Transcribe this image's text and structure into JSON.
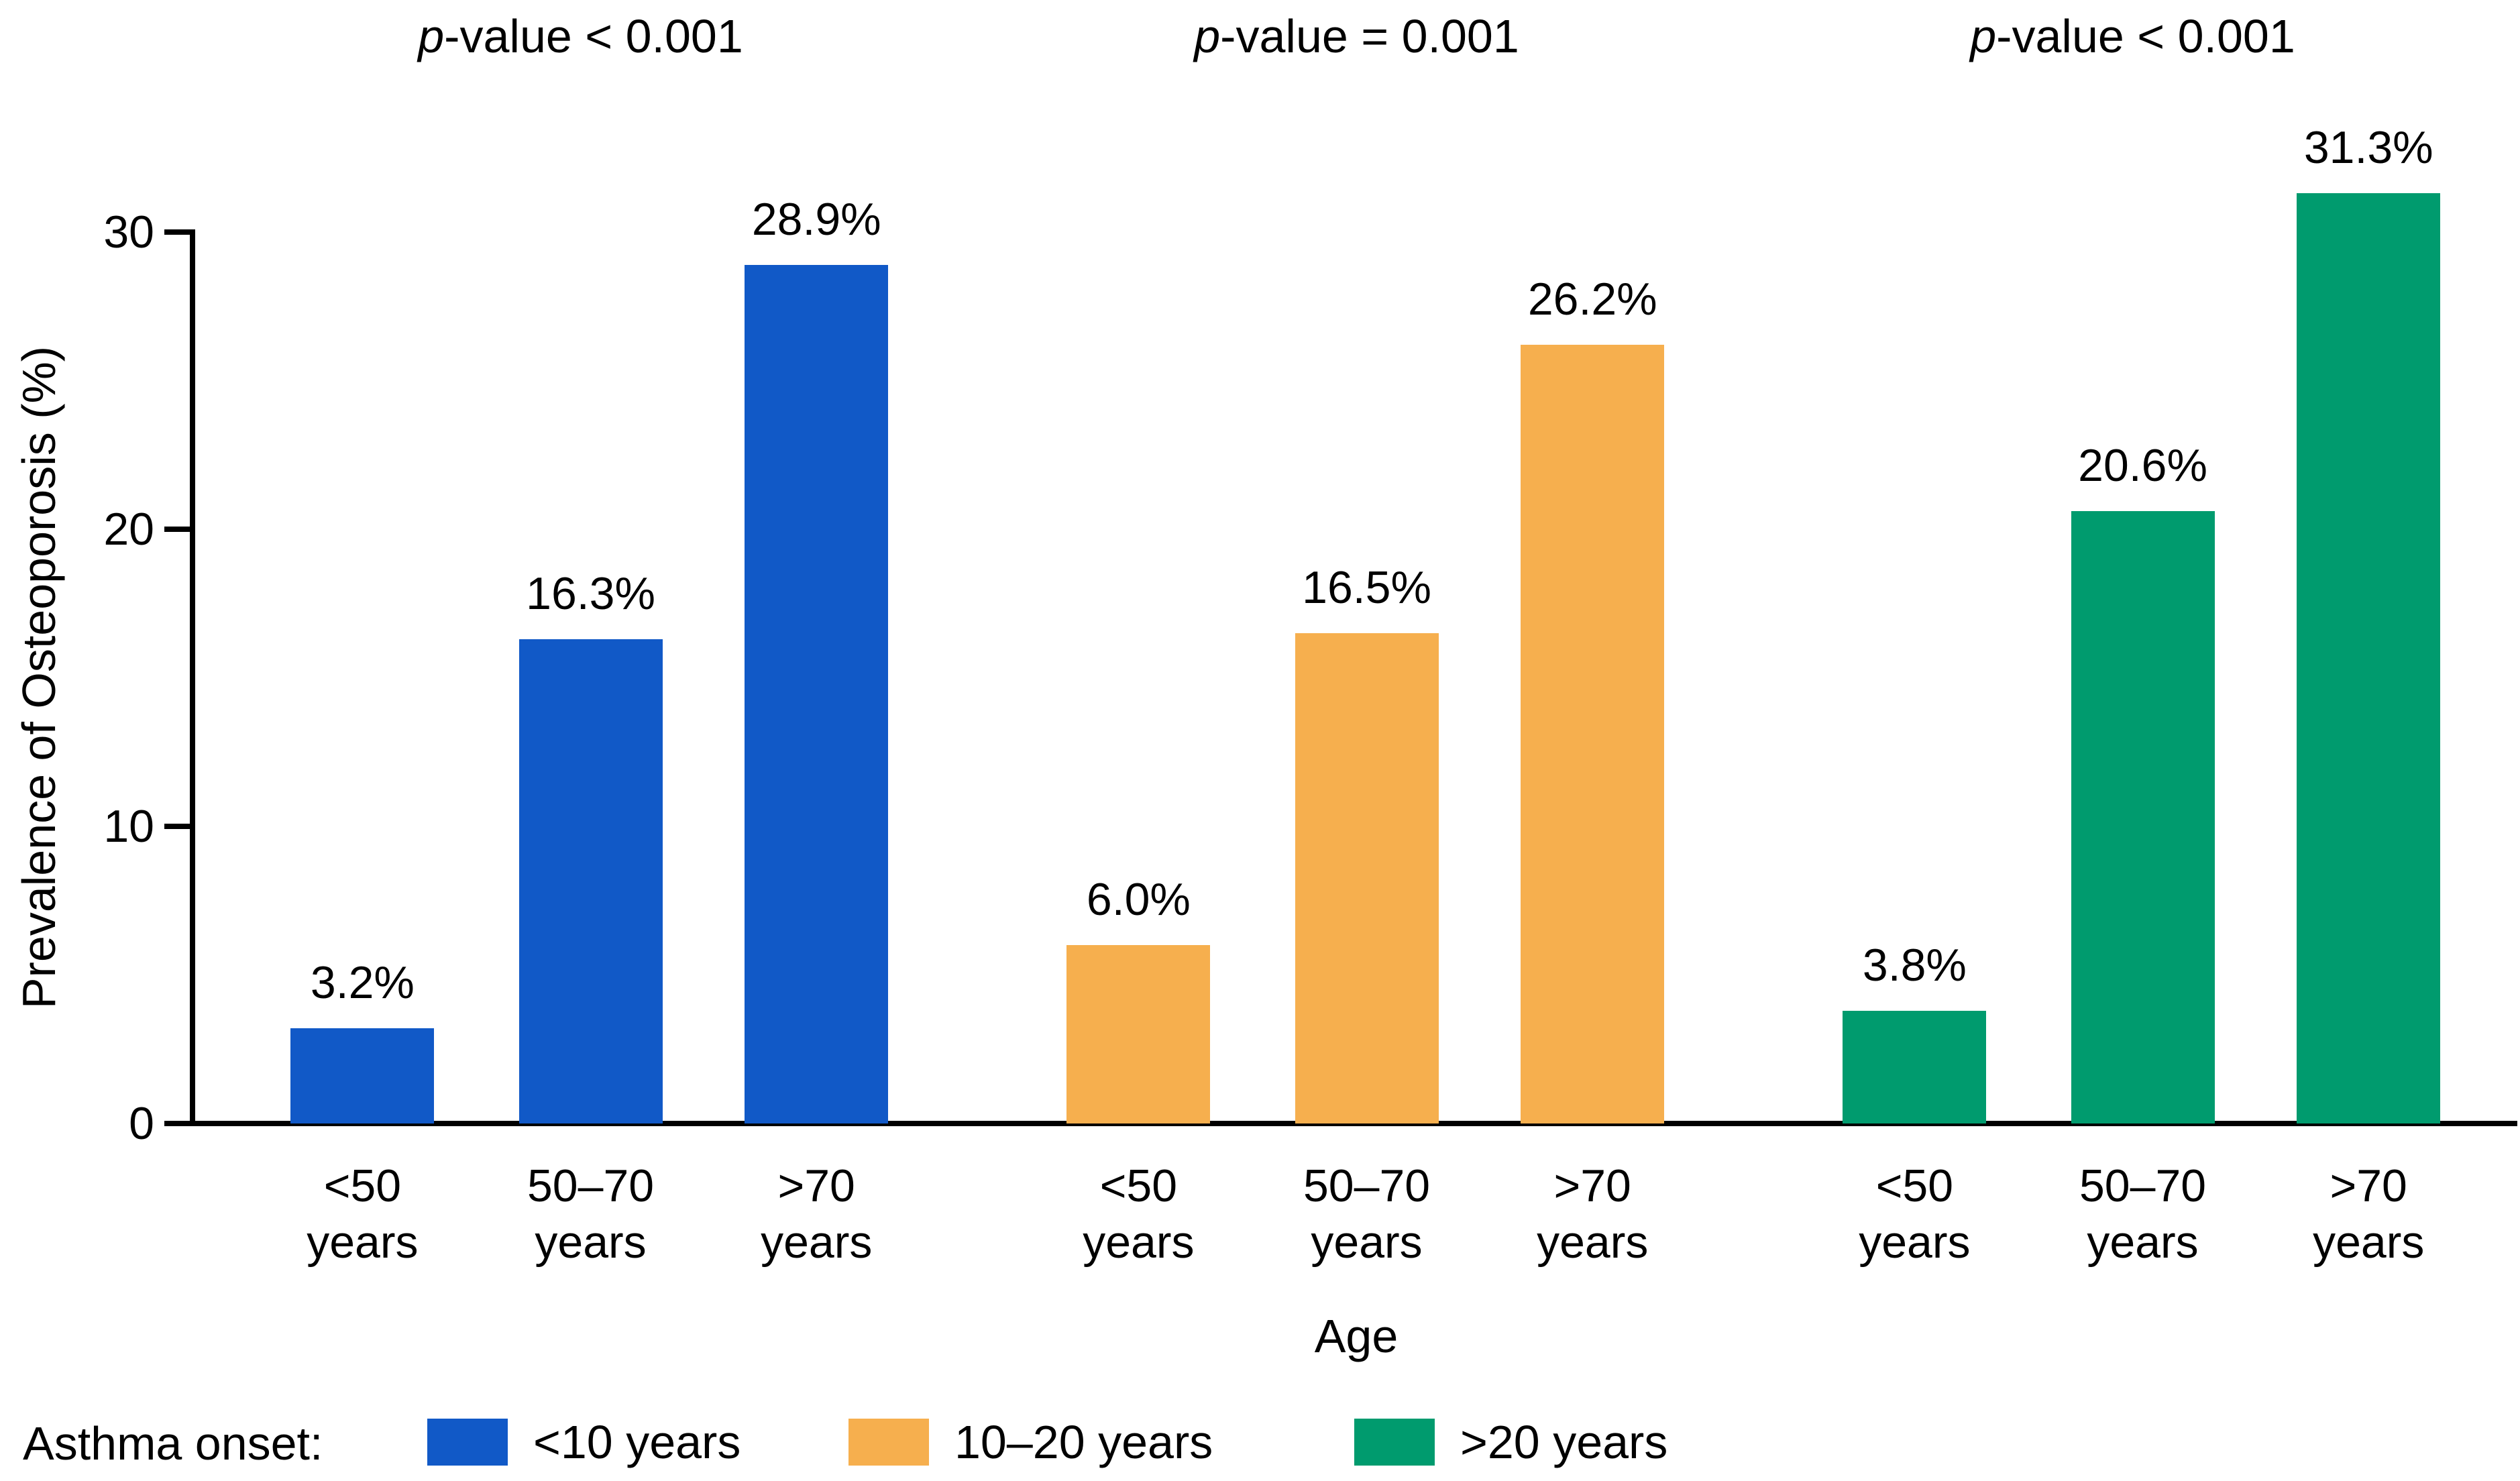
{
  "chart_data": {
    "type": "bar",
    "title": "",
    "xlabel": "Age",
    "ylabel": "Prevalence of Osteoporosis (%)",
    "ylim": [
      0,
      30
    ],
    "yticks": [
      "0",
      "10",
      "20",
      "30"
    ],
    "grid": false,
    "legend_position": "bottom",
    "legend_title": "Asthma onset:",
    "categories": [
      "<50 years",
      "50–70 years",
      ">70 years"
    ],
    "groups": [
      {
        "name": "<10 years",
        "color": "#1159C7",
        "p_label_italic": "p",
        "p_label_rest": "-value < 0.001",
        "values": [
          3.2,
          16.3,
          28.9
        ],
        "value_labels": [
          "3.2%",
          "16.3%",
          "28.9%"
        ]
      },
      {
        "name": "10–20 years",
        "color": "#F6AF4E",
        "p_label_italic": "p",
        "p_label_rest": "-value = 0.001",
        "values": [
          6.0,
          16.5,
          26.2
        ],
        "value_labels": [
          "6.0%",
          "16.5%",
          "26.2%"
        ]
      },
      {
        "name": ">20 years",
        "color": "#009B6E",
        "p_label_italic": "p",
        "p_label_rest": "-value < 0.001",
        "values": [
          3.8,
          20.6,
          31.3
        ],
        "value_labels": [
          "3.8%",
          "20.6%",
          "31.3%"
        ]
      }
    ],
    "colors": {
      "axis": "#000000",
      "text": "#000000",
      "background": "#ffffff",
      "blue": "#1159C7",
      "orange": "#F6AF4E",
      "green": "#009B6E"
    }
  }
}
